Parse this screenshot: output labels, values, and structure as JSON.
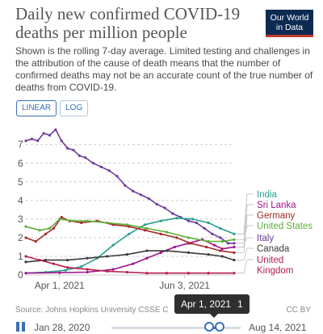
{
  "header": {
    "title": "Daily new confirmed COVID-19 deaths per million people",
    "subtitle": "Shown is the rolling 7-day average. Limited testing and challenges in the attribution of the cause of death means that the number of confirmed deaths may not be an accurate count of the true number of deaths from COVID-19.",
    "logo_line1": "Our World",
    "logo_line2": "in Data"
  },
  "controls": {
    "linear_label": "LINEAR",
    "log_label": "LOG",
    "active_scale": "linear"
  },
  "footer": {
    "source": "Source: Johns Hopkins University CSSE C",
    "license": "CC BY"
  },
  "timeline": {
    "start_label": "Jan 28, 2020",
    "end_label": "Aug 14, 2021",
    "tooltip_date": "Apr 1, 2021",
    "tooltip_count": "1"
  },
  "colors": {
    "India": "#2a9d8f",
    "Sri Lanka": "#a0148c",
    "Germany": "#a52a2a",
    "United States": "#5cae36",
    "Italy": "#6a3d9a",
    "Canada": "#3a3a3a",
    "United Kingdom": "#b21e4b",
    "axis": "#cccccc",
    "tick_text": "#555555"
  },
  "chart_data": {
    "type": "line",
    "title": "",
    "xlabel": "",
    "ylabel": "",
    "ylim": [
      0,
      7.9
    ],
    "yticks": [
      0,
      1,
      2,
      3,
      4,
      5,
      6,
      7
    ],
    "x_range": [
      "2021-03-15",
      "2021-06-28"
    ],
    "x_tick_labels": [
      "Apr 1, 2021",
      "Jun 3, 2021"
    ],
    "x_tick_dates": [
      "2021-04-01",
      "2021-06-03"
    ],
    "grid": true,
    "legend": "right",
    "legend_labels": [
      "India",
      "Sri Lanka",
      "Germany",
      "United States",
      "Italy",
      "Canada",
      "United",
      "Kingdom"
    ],
    "series": [
      {
        "name": "Italy",
        "color_key": "Italy",
        "x": [
          "2021-03-15",
          "2021-03-18",
          "2021-03-21",
          "2021-03-24",
          "2021-03-27",
          "2021-03-30",
          "2021-04-02",
          "2021-04-05",
          "2021-04-08",
          "2021-04-11",
          "2021-04-14",
          "2021-04-18",
          "2021-04-22",
          "2021-04-26",
          "2021-04-30",
          "2021-05-04",
          "2021-05-08",
          "2021-05-12",
          "2021-05-16",
          "2021-05-20",
          "2021-05-24",
          "2021-05-28",
          "2021-06-01",
          "2021-06-05",
          "2021-06-09",
          "2021-06-13",
          "2021-06-17",
          "2021-06-21",
          "2021-06-25",
          "2021-06-28"
        ],
        "y": [
          7.2,
          7.3,
          7.2,
          7.6,
          7.5,
          7.8,
          7.2,
          6.8,
          6.7,
          6.4,
          6.3,
          6.0,
          5.8,
          5.6,
          5.3,
          4.8,
          4.5,
          4.3,
          4.1,
          3.8,
          3.6,
          3.3,
          3.1,
          2.9,
          2.8,
          2.5,
          2.2,
          2.0,
          1.7,
          1.7
        ]
      },
      {
        "name": "India",
        "color_key": "India",
        "x": [
          "2021-03-15",
          "2021-03-25",
          "2021-04-04",
          "2021-04-12",
          "2021-04-20",
          "2021-04-28",
          "2021-05-06",
          "2021-05-14",
          "2021-05-22",
          "2021-05-30",
          "2021-06-07",
          "2021-06-15",
          "2021-06-21",
          "2021-06-28"
        ],
        "y": [
          0.1,
          0.15,
          0.25,
          0.45,
          0.9,
          1.6,
          2.2,
          2.7,
          2.9,
          3.05,
          3.0,
          2.8,
          2.5,
          2.2
        ]
      },
      {
        "name": "Sri Lanka",
        "color_key": "Sri Lanka",
        "x": [
          "2021-03-15",
          "2021-04-01",
          "2021-04-15",
          "2021-04-28",
          "2021-05-08",
          "2021-05-15",
          "2021-05-22",
          "2021-05-29",
          "2021-06-05",
          "2021-06-12",
          "2021-06-18",
          "2021-06-22",
          "2021-06-28"
        ],
        "y": [
          0.1,
          0.12,
          0.15,
          0.3,
          0.6,
          0.9,
          1.2,
          1.5,
          1.7,
          1.9,
          1.6,
          1.4,
          1.5
        ]
      },
      {
        "name": "Germany",
        "color_key": "Germany",
        "x": [
          "2021-03-15",
          "2021-03-20",
          "2021-03-25",
          "2021-03-29",
          "2021-04-02",
          "2021-04-06",
          "2021-04-12",
          "2021-04-20",
          "2021-04-28",
          "2021-05-06",
          "2021-05-14",
          "2021-05-22",
          "2021-05-30",
          "2021-06-06",
          "2021-06-14",
          "2021-06-21",
          "2021-06-28"
        ],
        "y": [
          2.0,
          1.8,
          2.2,
          2.5,
          3.1,
          2.9,
          2.8,
          2.9,
          2.7,
          2.6,
          2.4,
          2.2,
          2.0,
          1.7,
          1.5,
          1.3,
          1.2
        ]
      },
      {
        "name": "United States",
        "color_key": "United States",
        "x": [
          "2021-03-15",
          "2021-03-22",
          "2021-03-27",
          "2021-04-01",
          "2021-04-08",
          "2021-04-15",
          "2021-04-25",
          "2021-05-05",
          "2021-05-15",
          "2021-05-25",
          "2021-06-05",
          "2021-06-15",
          "2021-06-22",
          "2021-06-28"
        ],
        "y": [
          2.6,
          2.4,
          2.5,
          3.0,
          2.9,
          2.9,
          2.8,
          2.7,
          2.5,
          2.3,
          2.0,
          1.8,
          1.8,
          1.9
        ]
      },
      {
        "name": "Canada",
        "color_key": "Canada",
        "x": [
          "2021-03-15",
          "2021-03-25",
          "2021-04-05",
          "2021-04-15",
          "2021-04-25",
          "2021-05-05",
          "2021-05-15",
          "2021-05-25",
          "2021-06-05",
          "2021-06-15",
          "2021-06-22",
          "2021-06-28"
        ],
        "y": [
          0.7,
          0.8,
          0.8,
          0.9,
          1.0,
          1.1,
          1.3,
          1.3,
          1.2,
          1.1,
          1.0,
          0.8
        ]
      },
      {
        "name": "United Kingdom",
        "color_key": "United Kingdom",
        "x": [
          "2021-03-15",
          "2021-03-22",
          "2021-03-29",
          "2021-04-05",
          "2021-04-15",
          "2021-04-25",
          "2021-05-05",
          "2021-05-15",
          "2021-05-25",
          "2021-06-05",
          "2021-06-15",
          "2021-06-28"
        ],
        "y": [
          1.0,
          0.8,
          0.6,
          0.4,
          0.3,
          0.2,
          0.15,
          0.1,
          0.1,
          0.1,
          0.1,
          0.1
        ]
      }
    ]
  }
}
